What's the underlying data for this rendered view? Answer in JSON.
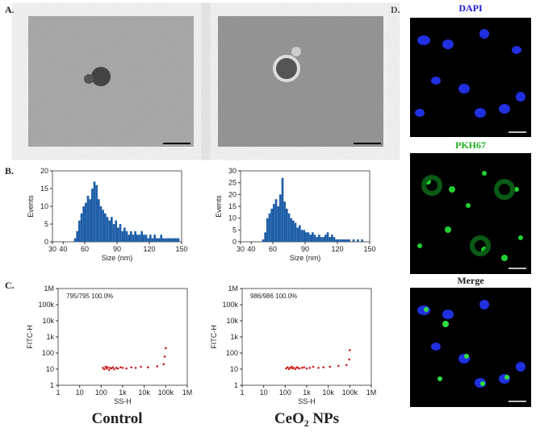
{
  "panel_labels": [
    "A.",
    "B.",
    "C.",
    "D."
  ],
  "group_labels": [
    "Control",
    "CeO₂ NPs"
  ],
  "fluorescence_labels": [
    "DAPI",
    "PKH67",
    "Merge"
  ],
  "chart_data": [
    {
      "type": "histogram",
      "x_label": "Size (nm)",
      "y_label": "Events",
      "color": "#1f5fa8",
      "bins": [
        50,
        52,
        54,
        56,
        58,
        60,
        62,
        64,
        66,
        68,
        70,
        72,
        74,
        76,
        78,
        80,
        82,
        84,
        86,
        88,
        90,
        92,
        94,
        96,
        98,
        100,
        102,
        104,
        106,
        108,
        110,
        112,
        114,
        116,
        118,
        120,
        122,
        124,
        126,
        128,
        130,
        132,
        134,
        136,
        138,
        140,
        142,
        144,
        146,
        148,
        150
      ],
      "values": [
        1,
        3,
        6,
        8,
        10,
        11,
        13,
        12,
        15,
        17,
        16,
        12,
        10,
        9,
        8,
        7,
        6,
        7,
        5,
        6,
        4,
        5,
        3,
        4,
        3,
        2,
        3,
        2,
        3,
        2,
        2,
        3,
        2,
        2,
        1,
        2,
        1,
        2,
        1,
        1,
        2,
        1,
        1,
        1,
        1,
        1,
        1,
        1,
        1,
        0
      ],
      "xlim": [
        30,
        150
      ],
      "xticks": [
        30,
        40,
        60,
        90,
        120,
        150
      ],
      "ylim": [
        0,
        20
      ],
      "yticks": [
        0,
        5,
        10,
        15,
        20
      ]
    },
    {
      "type": "histogram",
      "x_label": "Size (nm)",
      "y_label": "Events",
      "color": "#1f5fa8",
      "bins": [
        50,
        52,
        54,
        56,
        58,
        60,
        62,
        64,
        66,
        68,
        70,
        72,
        74,
        76,
        78,
        80,
        82,
        84,
        86,
        88,
        90,
        92,
        94,
        96,
        98,
        100,
        102,
        104,
        106,
        108,
        110,
        112,
        114,
        116,
        118,
        120,
        122,
        124,
        126,
        128,
        130,
        132,
        134,
        136,
        138,
        140,
        142,
        144,
        146,
        148,
        150
      ],
      "values": [
        1,
        4,
        10,
        12,
        14,
        16,
        18,
        15,
        20,
        27,
        17,
        14,
        12,
        10,
        9,
        8,
        6,
        7,
        5,
        5,
        4,
        4,
        3,
        4,
        3,
        2,
        3,
        2,
        2,
        3,
        4,
        2,
        3,
        2,
        1,
        1,
        1,
        1,
        1,
        1,
        1,
        0,
        1,
        0,
        1,
        0,
        1,
        0,
        0,
        0
      ],
      "xlim": [
        30,
        150
      ],
      "xticks": [
        30,
        40,
        60,
        90,
        120,
        150
      ],
      "ylim": [
        0,
        30
      ],
      "yticks": [
        0,
        5,
        10,
        15,
        20,
        25,
        30
      ]
    },
    {
      "type": "scatter",
      "x_label": "SS-H",
      "y_label": "FITC-H",
      "annotation": "795/795   100.0%",
      "color": "#cc2222",
      "xlog": true,
      "ylog": true,
      "x": [
        120,
        140,
        160,
        180,
        200,
        230,
        260,
        300,
        350,
        400,
        500,
        600,
        800,
        1000,
        1500,
        2500,
        4000,
        7000,
        15000,
        40000,
        80000,
        90000,
        100000
      ],
      "y": [
        12,
        10,
        14,
        11,
        13,
        9,
        12,
        11,
        13,
        10,
        12,
        11,
        13,
        12,
        11,
        13,
        12,
        14,
        13,
        15,
        20,
        60,
        200
      ],
      "xlim": [
        1,
        1000000
      ],
      "ylim": [
        1,
        1000000
      ],
      "xticks": [
        1,
        10,
        100,
        {
          "value": 1000,
          "label": "1k"
        },
        {
          "value": 10000,
          "label": "10k"
        },
        {
          "value": 100000,
          "label": "100k"
        },
        {
          "value": 1000000,
          "label": "1M"
        }
      ],
      "yticks": [
        1,
        10,
        100,
        {
          "value": 1000,
          "label": "1k"
        },
        {
          "value": 10000,
          "label": "10k"
        },
        {
          "value": 100000,
          "label": "100k"
        },
        {
          "value": 1000000,
          "label": "1M"
        }
      ]
    },
    {
      "type": "scatter",
      "x_label": "SS-H",
      "y_label": "FITC-H",
      "annotation": "986/986   100.0%",
      "color": "#cc2222",
      "xlog": true,
      "ylog": true,
      "x": [
        110,
        130,
        150,
        170,
        200,
        220,
        250,
        300,
        340,
        400,
        450,
        600,
        750,
        1000,
        1400,
        2000,
        3500,
        6000,
        12000,
        30000,
        70000,
        95000,
        100000
      ],
      "y": [
        11,
        13,
        10,
        12,
        14,
        11,
        12,
        10,
        13,
        12,
        11,
        12,
        13,
        11,
        12,
        14,
        12,
        13,
        14,
        16,
        18,
        40,
        150
      ],
      "xlim": [
        1,
        1000000
      ],
      "ylim": [
        1,
        1000000
      ],
      "xticks": [
        1,
        10,
        100,
        {
          "value": 1000,
          "label": "1k"
        },
        {
          "value": 10000,
          "label": "10k"
        },
        {
          "value": 100000,
          "label": "100k"
        },
        {
          "value": 1000000,
          "label": "1M"
        }
      ],
      "yticks": [
        1,
        10,
        100,
        {
          "value": 1000,
          "label": "1k"
        },
        {
          "value": 10000,
          "label": "10k"
        },
        {
          "value": 100000,
          "label": "100k"
        },
        {
          "value": 1000000,
          "label": "1M"
        }
      ]
    }
  ]
}
